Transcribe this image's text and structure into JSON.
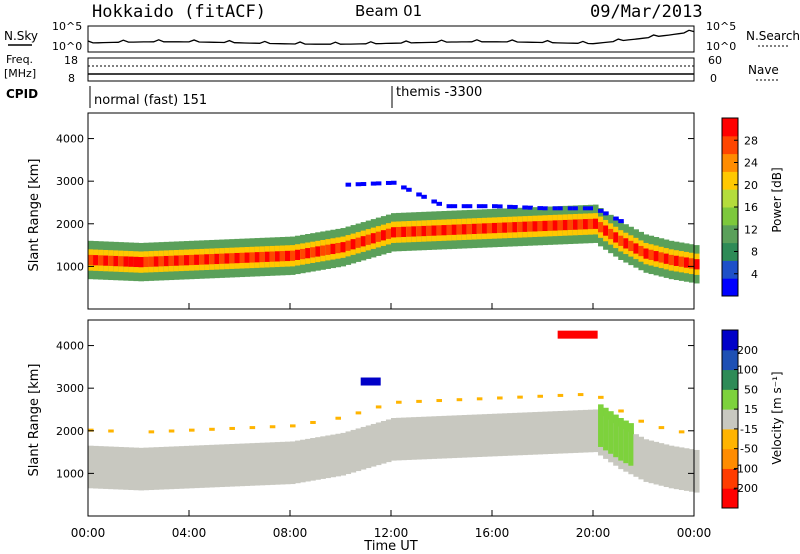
{
  "header": {
    "station": "Hokkaido (fitACF)",
    "beam": "Beam 01",
    "date": "09/Mar/2013"
  },
  "noise_panel": {
    "left_label": "N.Sky",
    "right_label": "N.Search",
    "ticks_left": [
      "10^5",
      "10^0"
    ],
    "ticks_right": [
      "10^5",
      "10^0"
    ]
  },
  "freq_panel": {
    "left_label_1": "Freq.",
    "left_label_2": "[MHz]",
    "right_label": "Nave",
    "ticks_left": [
      "18",
      "8"
    ],
    "ticks_right": [
      "60",
      "0"
    ]
  },
  "cpid_panel": {
    "label": "CPID",
    "mode_1": "normal (fast) 151",
    "mode_2": "themis -3300"
  },
  "power_colorbar": {
    "label": "Power [dB]",
    "ticks": [
      "28",
      "24",
      "20",
      "16",
      "12",
      "8",
      "4"
    ],
    "colors": [
      "#0000ff",
      "#1e50c8",
      "#2e8b57",
      "#5aa05a",
      "#7dc83c",
      "#b4dc3c",
      "#ffc800",
      "#ff8c00",
      "#ff4600",
      "#ff0000"
    ]
  },
  "velocity_colorbar": {
    "label": "Velocity [m s⁻¹]",
    "ticks": [
      "200",
      "100",
      "50",
      "15",
      "-15",
      "-50",
      "-100",
      "-200"
    ],
    "colors": [
      "#0000c8",
      "#1e50b4",
      "#2e8b57",
      "#7dd23c",
      "#c8c8c0",
      "#ffb400",
      "#ff8c00",
      "#ff3c00",
      "#ff0000"
    ]
  },
  "chart_data": [
    {
      "type": "heatmap",
      "name_panel": "power",
      "ylabel": "Slant Range [km]",
      "yticks": [
        "4000",
        "3000",
        "2000",
        "1000"
      ],
      "ylim": [
        0,
        4600
      ],
      "xlim": [
        "00:00",
        "24:00"
      ],
      "series": [
        {
          "band": "main echo",
          "x": [
            0,
            2,
            4,
            6,
            8,
            10,
            12,
            14,
            16,
            18,
            20,
            21,
            22,
            23,
            24
          ],
          "y": [
            1150,
            1100,
            1150,
            1200,
            1250,
            1450,
            1800,
            1850,
            1900,
            1950,
            2000,
            1600,
            1300,
            1150,
            1050
          ]
        },
        {
          "band": "upper echo",
          "x": [
            10,
            12,
            14,
            16,
            18,
            20,
            21
          ],
          "y": [
            2900,
            2950,
            2400,
            2400,
            2350,
            2350,
            2050
          ]
        }
      ]
    },
    {
      "type": "heatmap",
      "name_panel": "velocity",
      "ylabel": "Slant Range [km]",
      "yticks": [
        "4000",
        "3000",
        "2000",
        "1000"
      ],
      "ylim": [
        0,
        4600
      ],
      "xlabel": "Time UT",
      "xticks": [
        "00:00",
        "04:00",
        "08:00",
        "12:00",
        "16:00",
        "20:00",
        "00:00"
      ]
    }
  ]
}
